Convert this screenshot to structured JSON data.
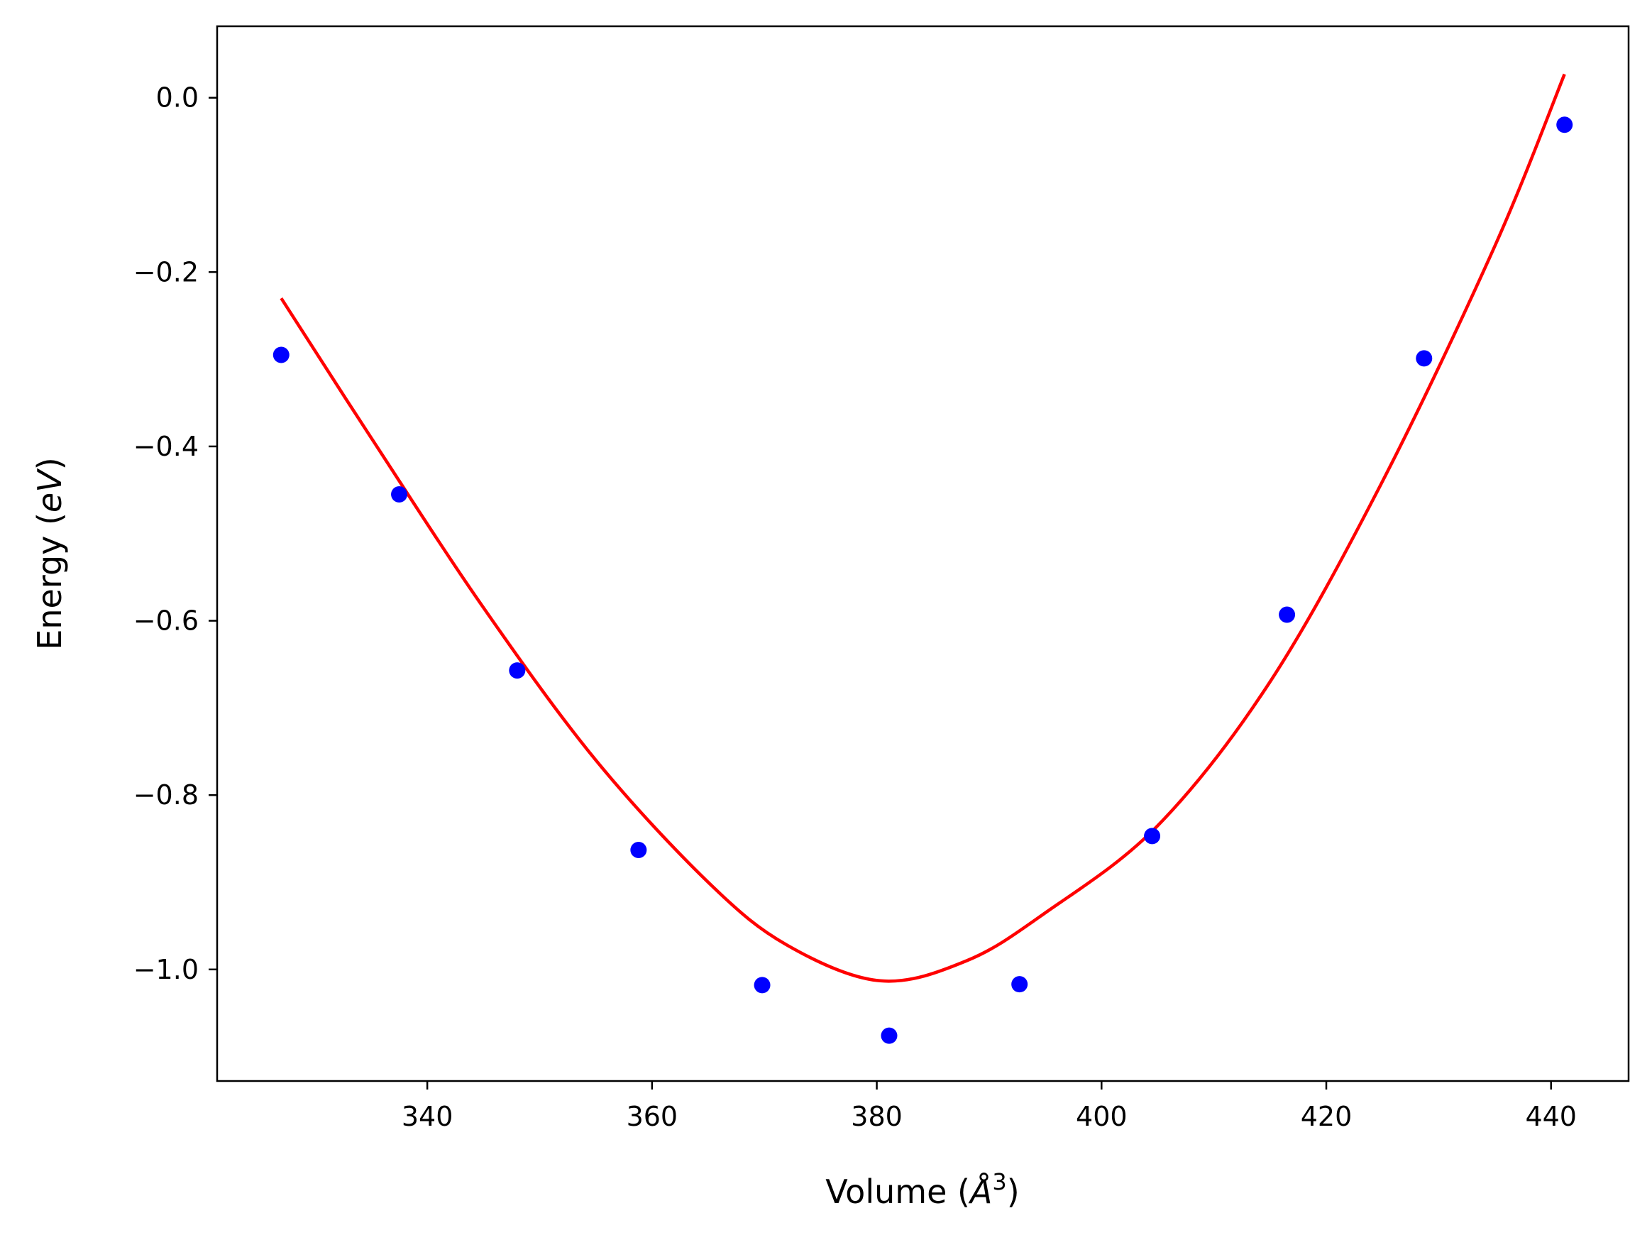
{
  "chart_data": {
    "type": "scatter",
    "title": "",
    "xlabel": {
      "text": "Volume (",
      "symbol": "Å",
      "superscript": "3",
      "close": ")"
    },
    "ylabel": {
      "text": "Energy (",
      "italic": "eV",
      "close": ")"
    },
    "xlim": [
      321.3,
      446.9
    ],
    "ylim": [
      -1.128,
      0.082
    ],
    "xticks": [
      {
        "value": 340,
        "label": "340"
      },
      {
        "value": 360,
        "label": "360"
      },
      {
        "value": 380,
        "label": "380"
      },
      {
        "value": 400,
        "label": "400"
      },
      {
        "value": 420,
        "label": "420"
      },
      {
        "value": 440,
        "label": "440"
      }
    ],
    "yticks": [
      {
        "value": 0.0,
        "label": "0.0"
      },
      {
        "value": -0.2,
        "label": "−0.2"
      },
      {
        "value": -0.4,
        "label": "−0.4"
      },
      {
        "value": -0.6,
        "label": "−0.6"
      },
      {
        "value": -0.8,
        "label": "−0.8"
      },
      {
        "value": -1.0,
        "label": "−1.0"
      }
    ],
    "grid": false,
    "series": [
      {
        "kind": "points",
        "color": "#0000ff",
        "x": [
          327.0,
          337.5,
          348.0,
          358.8,
          369.8,
          381.1,
          392.7,
          404.5,
          416.5,
          428.7,
          441.2
        ],
        "y": [
          -0.295,
          -0.455,
          -0.657,
          -0.863,
          -1.018,
          -1.076,
          -1.017,
          -0.847,
          -0.593,
          -0.299,
          -0.031
        ]
      },
      {
        "kind": "fit-line",
        "color": "#ff0000",
        "x": [
          327.0,
          335.0,
          345.0,
          355.0,
          365.0,
          372.0,
          380.3,
          388.0,
          395.0,
          405.0,
          415.0,
          425.0,
          435.0,
          441.2
        ],
        "y": [
          -0.23,
          -0.39,
          -0.585,
          -0.76,
          -0.9,
          -0.972,
          -1.013,
          -0.99,
          -0.935,
          -0.835,
          -0.67,
          -0.44,
          -0.17,
          0.027
        ]
      }
    ]
  }
}
